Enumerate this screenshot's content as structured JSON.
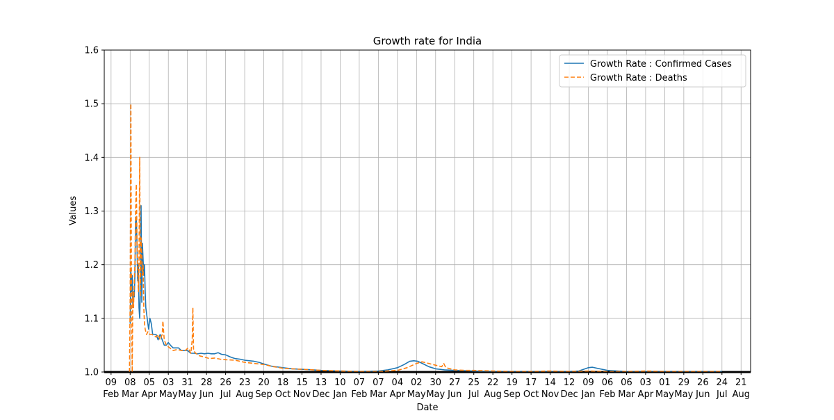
{
  "chart_data": {
    "type": "line",
    "title": "Growth rate for India",
    "xlabel": "Date",
    "ylabel": "Values",
    "ylim": [
      1.0,
      1.6
    ],
    "yticks": [
      "1.0",
      "1.1",
      "1.2",
      "1.3",
      "1.4",
      "1.5",
      "1.6"
    ],
    "grid": true,
    "legend_position": "top-right",
    "x_tick_labels": [
      {
        "day": "09",
        "month": "Feb",
        "date": "2020-02-09"
      },
      {
        "day": "08",
        "month": "Mar",
        "date": "2020-03-08"
      },
      {
        "day": "05",
        "month": "Apr",
        "date": "2020-04-05"
      },
      {
        "day": "03",
        "month": "May",
        "date": "2020-05-03"
      },
      {
        "day": "31",
        "month": "May",
        "date": "2020-05-31"
      },
      {
        "day": "28",
        "month": "Jun",
        "date": "2020-06-28"
      },
      {
        "day": "26",
        "month": "Jul",
        "date": "2020-07-26"
      },
      {
        "day": "23",
        "month": "Aug",
        "date": "2020-08-23"
      },
      {
        "day": "20",
        "month": "Sep",
        "date": "2020-09-20"
      },
      {
        "day": "18",
        "month": "Oct",
        "date": "2020-10-18"
      },
      {
        "day": "15",
        "month": "Nov",
        "date": "2020-11-15"
      },
      {
        "day": "13",
        "month": "Dec",
        "date": "2020-12-13"
      },
      {
        "day": "10",
        "month": "Jan",
        "date": "2021-01-10"
      },
      {
        "day": "07",
        "month": "Feb",
        "date": "2021-02-07"
      },
      {
        "day": "07",
        "month": "Mar",
        "date": "2021-03-07"
      },
      {
        "day": "04",
        "month": "Apr",
        "date": "2021-04-04"
      },
      {
        "day": "02",
        "month": "May",
        "date": "2021-05-02"
      },
      {
        "day": "30",
        "month": "May",
        "date": "2021-05-30"
      },
      {
        "day": "27",
        "month": "Jun",
        "date": "2021-06-27"
      },
      {
        "day": "25",
        "month": "Jul",
        "date": "2021-07-25"
      },
      {
        "day": "22",
        "month": "Aug",
        "date": "2021-08-22"
      },
      {
        "day": "19",
        "month": "Sep",
        "date": "2021-09-19"
      },
      {
        "day": "17",
        "month": "Oct",
        "date": "2021-10-17"
      },
      {
        "day": "14",
        "month": "Nov",
        "date": "2021-11-14"
      },
      {
        "day": "12",
        "month": "Dec",
        "date": "2021-12-12"
      },
      {
        "day": "09",
        "month": "Jan",
        "date": "2022-01-09"
      },
      {
        "day": "06",
        "month": "Feb",
        "date": "2022-02-06"
      },
      {
        "day": "06",
        "month": "Mar",
        "date": "2022-03-06"
      },
      {
        "day": "03",
        "month": "Apr",
        "date": "2022-04-03"
      },
      {
        "day": "01",
        "month": "May",
        "date": "2022-05-01"
      },
      {
        "day": "29",
        "month": "May",
        "date": "2022-05-29"
      },
      {
        "day": "26",
        "month": "Jun",
        "date": "2022-06-26"
      },
      {
        "day": "24",
        "month": "Jul",
        "date": "2022-07-24"
      },
      {
        "day": "21",
        "month": "Aug",
        "date": "2022-08-21"
      }
    ],
    "xlim": [
      "2020-01-30",
      "2022-09-04"
    ],
    "series": [
      {
        "name": "Growth Rate : Confirmed Cases",
        "color": "#1f77b4",
        "style": "solid",
        "points": [
          [
            "2020-03-08",
            1.09
          ],
          [
            "2020-03-09",
            1.19
          ],
          [
            "2020-03-10",
            1.15
          ],
          [
            "2020-03-11",
            1.18
          ],
          [
            "2020-03-12",
            1.12
          ],
          [
            "2020-03-13",
            1.15
          ],
          [
            "2020-03-14",
            1.14
          ],
          [
            "2020-03-15",
            1.18
          ],
          [
            "2020-03-16",
            1.28
          ],
          [
            "2020-03-17",
            1.29
          ],
          [
            "2020-03-18",
            1.24
          ],
          [
            "2020-03-19",
            1.17
          ],
          [
            "2020-03-20",
            1.2
          ],
          [
            "2020-03-21",
            1.12
          ],
          [
            "2020-03-22",
            1.1
          ],
          [
            "2020-03-23",
            1.15
          ],
          [
            "2020-03-24",
            1.31
          ],
          [
            "2020-03-25",
            1.13
          ],
          [
            "2020-03-26",
            1.24
          ],
          [
            "2020-03-27",
            1.21
          ],
          [
            "2020-03-28",
            1.18
          ],
          [
            "2020-03-29",
            1.2
          ],
          [
            "2020-03-30",
            1.15
          ],
          [
            "2020-03-31",
            1.12
          ],
          [
            "2020-04-02",
            1.1
          ],
          [
            "2020-04-04",
            1.08
          ],
          [
            "2020-04-06",
            1.1
          ],
          [
            "2020-04-08",
            1.09
          ],
          [
            "2020-04-10",
            1.07
          ],
          [
            "2020-04-12",
            1.07
          ],
          [
            "2020-04-15",
            1.07
          ],
          [
            "2020-04-18",
            1.06
          ],
          [
            "2020-04-21",
            1.07
          ],
          [
            "2020-04-24",
            1.06
          ],
          [
            "2020-04-27",
            1.05
          ],
          [
            "2020-04-30",
            1.05
          ],
          [
            "2020-05-03",
            1.055
          ],
          [
            "2020-05-06",
            1.05
          ],
          [
            "2020-05-10",
            1.045
          ],
          [
            "2020-05-14",
            1.045
          ],
          [
            "2020-05-18",
            1.045
          ],
          [
            "2020-05-22",
            1.04
          ],
          [
            "2020-05-26",
            1.04
          ],
          [
            "2020-05-31",
            1.04
          ],
          [
            "2020-06-05",
            1.035
          ],
          [
            "2020-06-10",
            1.035
          ],
          [
            "2020-06-15",
            1.034
          ],
          [
            "2020-06-20",
            1.035
          ],
          [
            "2020-06-25",
            1.034
          ],
          [
            "2020-06-30",
            1.035
          ],
          [
            "2020-07-05",
            1.034
          ],
          [
            "2020-07-10",
            1.034
          ],
          [
            "2020-07-15",
            1.036
          ],
          [
            "2020-07-20",
            1.033
          ],
          [
            "2020-07-26",
            1.032
          ],
          [
            "2020-08-02",
            1.028
          ],
          [
            "2020-08-09",
            1.025
          ],
          [
            "2020-08-16",
            1.024
          ],
          [
            "2020-08-23",
            1.022
          ],
          [
            "2020-08-30",
            1.021
          ],
          [
            "2020-09-06",
            1.02
          ],
          [
            "2020-09-13",
            1.018
          ],
          [
            "2020-09-20",
            1.015
          ],
          [
            "2020-10-01",
            1.011
          ],
          [
            "2020-10-18",
            1.008
          ],
          [
            "2020-11-01",
            1.006
          ],
          [
            "2020-11-15",
            1.005
          ],
          [
            "2020-12-01",
            1.004
          ],
          [
            "2020-12-13",
            1.003
          ],
          [
            "2021-01-10",
            1.002
          ],
          [
            "2021-02-07",
            1.001
          ],
          [
            "2021-03-07",
            1.002
          ],
          [
            "2021-03-21",
            1.004
          ],
          [
            "2021-04-04",
            1.008
          ],
          [
            "2021-04-14",
            1.014
          ],
          [
            "2021-04-22",
            1.02
          ],
          [
            "2021-04-28",
            1.021
          ],
          [
            "2021-05-04",
            1.02
          ],
          [
            "2021-05-12",
            1.015
          ],
          [
            "2021-05-20",
            1.01
          ],
          [
            "2021-05-30",
            1.006
          ],
          [
            "2021-06-12",
            1.004
          ],
          [
            "2021-06-27",
            1.003
          ],
          [
            "2021-07-25",
            1.002
          ],
          [
            "2021-08-22",
            1.001
          ],
          [
            "2021-09-19",
            1.001
          ],
          [
            "2021-10-17",
            1.001
          ],
          [
            "2021-11-14",
            1.001
          ],
          [
            "2021-12-12",
            1.001
          ],
          [
            "2021-12-26",
            1.002
          ],
          [
            "2022-01-02",
            1.005
          ],
          [
            "2022-01-09",
            1.008
          ],
          [
            "2022-01-15",
            1.009
          ],
          [
            "2022-01-22",
            1.007
          ],
          [
            "2022-02-06",
            1.003
          ],
          [
            "2022-03-06",
            1.001
          ],
          [
            "2022-04-03",
            1.001
          ],
          [
            "2022-05-01",
            1.001
          ],
          [
            "2022-06-26",
            1.001
          ],
          [
            "2022-07-24",
            1.001
          ]
        ]
      },
      {
        "name": "Growth Rate : Deaths",
        "color": "#ff7f0e",
        "style": "dashed",
        "points": [
          [
            "2020-03-07",
            1.0
          ],
          [
            "2020-03-08",
            1.14
          ],
          [
            "2020-03-09",
            1.5
          ],
          [
            "2020-03-10",
            1.15
          ],
          [
            "2020-03-11",
            1.0
          ],
          [
            "2020-03-12",
            1.15
          ],
          [
            "2020-03-13",
            1.12
          ],
          [
            "2020-03-14",
            1.17
          ],
          [
            "2020-03-15",
            1.2
          ],
          [
            "2020-03-16",
            1.3
          ],
          [
            "2020-03-17",
            1.35
          ],
          [
            "2020-03-18",
            1.25
          ],
          [
            "2020-03-19",
            1.2
          ],
          [
            "2020-03-20",
            1.15
          ],
          [
            "2020-03-21",
            1.2
          ],
          [
            "2020-03-22",
            1.4
          ],
          [
            "2020-03-23",
            1.14
          ],
          [
            "2020-03-24",
            1.25
          ],
          [
            "2020-03-25",
            1.22
          ],
          [
            "2020-03-26",
            1.18
          ],
          [
            "2020-03-27",
            1.2
          ],
          [
            "2020-03-28",
            1.12
          ],
          [
            "2020-03-29",
            1.09
          ],
          [
            "2020-03-30",
            1.08
          ],
          [
            "2020-04-01",
            1.07
          ],
          [
            "2020-04-03",
            1.075
          ],
          [
            "2020-04-06",
            1.07
          ],
          [
            "2020-04-09",
            1.07
          ],
          [
            "2020-04-12",
            1.068
          ],
          [
            "2020-04-15",
            1.065
          ],
          [
            "2020-04-18",
            1.07
          ],
          [
            "2020-04-21",
            1.06
          ],
          [
            "2020-04-24",
            1.07
          ],
          [
            "2020-04-25",
            1.095
          ],
          [
            "2020-04-27",
            1.06
          ],
          [
            "2020-04-30",
            1.05
          ],
          [
            "2020-05-05",
            1.045
          ],
          [
            "2020-05-10",
            1.04
          ],
          [
            "2020-05-16",
            1.042
          ],
          [
            "2020-05-22",
            1.04
          ],
          [
            "2020-05-28",
            1.04
          ],
          [
            "2020-06-01",
            1.045
          ],
          [
            "2020-06-05",
            1.035
          ],
          [
            "2020-06-07",
            1.06
          ],
          [
            "2020-06-08",
            1.12
          ],
          [
            "2020-06-09",
            1.04
          ],
          [
            "2020-06-12",
            1.035
          ],
          [
            "2020-06-18",
            1.03
          ],
          [
            "2020-06-25",
            1.028
          ],
          [
            "2020-07-02",
            1.025
          ],
          [
            "2020-07-10",
            1.026
          ],
          [
            "2020-07-18",
            1.024
          ],
          [
            "2020-07-26",
            1.023
          ],
          [
            "2020-08-09",
            1.022
          ],
          [
            "2020-08-23",
            1.018
          ],
          [
            "2020-09-06",
            1.016
          ],
          [
            "2020-09-20",
            1.014
          ],
          [
            "2020-10-04",
            1.01
          ],
          [
            "2020-10-18",
            1.007
          ],
          [
            "2020-11-01",
            1.006
          ],
          [
            "2020-11-15",
            1.005
          ],
          [
            "2020-12-01",
            1.004
          ],
          [
            "2020-12-13",
            1.003
          ],
          [
            "2021-01-10",
            1.002
          ],
          [
            "2021-02-07",
            1.001
          ],
          [
            "2021-03-07",
            1.001
          ],
          [
            "2021-04-04",
            1.003
          ],
          [
            "2021-04-18",
            1.008
          ],
          [
            "2021-05-02",
            1.016
          ],
          [
            "2021-05-10",
            1.019
          ],
          [
            "2021-05-20",
            1.016
          ],
          [
            "2021-06-01",
            1.012
          ],
          [
            "2021-06-08",
            1.01
          ],
          [
            "2021-06-11",
            1.016
          ],
          [
            "2021-06-14",
            1.008
          ],
          [
            "2021-06-27",
            1.004
          ],
          [
            "2021-07-12",
            1.003
          ],
          [
            "2021-07-25",
            1.003
          ],
          [
            "2021-08-22",
            1.002
          ],
          [
            "2021-09-19",
            1.001
          ],
          [
            "2021-10-17",
            1.001
          ],
          [
            "2021-11-14",
            1.002
          ],
          [
            "2021-12-12",
            1.001
          ],
          [
            "2022-01-09",
            1.002
          ],
          [
            "2022-02-06",
            1.001
          ],
          [
            "2022-03-06",
            1.001
          ],
          [
            "2022-04-03",
            1.002
          ],
          [
            "2022-05-01",
            1.001
          ],
          [
            "2022-06-26",
            1.001
          ],
          [
            "2022-07-24",
            1.001
          ]
        ]
      }
    ]
  }
}
